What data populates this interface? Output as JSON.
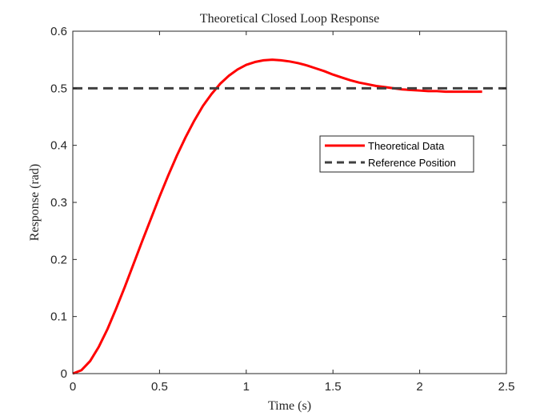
{
  "chart_data": {
    "type": "line",
    "title": "Theoretical Closed Loop Response",
    "xlabel": "Time (s)",
    "ylabel": "Response (rad)",
    "xlim": [
      0,
      2.5
    ],
    "ylim": [
      0,
      0.6
    ],
    "xticks": [
      0,
      0.5,
      1,
      1.5,
      2,
      2.5
    ],
    "xtick_labels": [
      "0",
      "0.5",
      "1",
      "1.5",
      "2",
      "2.5"
    ],
    "yticks": [
      0,
      0.1,
      0.2,
      0.3,
      0.4,
      0.5,
      0.6
    ],
    "ytick_labels": [
      "0",
      "0.1",
      "0.2",
      "0.3",
      "0.4",
      "0.5",
      "0.6"
    ],
    "grid": false,
    "legend_position": "center-right",
    "series": [
      {
        "name": "Theoretical Data",
        "color": "#ff0000",
        "style": "solid",
        "x": [
          0,
          0.05,
          0.1,
          0.15,
          0.2,
          0.25,
          0.3,
          0.35,
          0.4,
          0.45,
          0.5,
          0.55,
          0.6,
          0.65,
          0.7,
          0.75,
          0.8,
          0.85,
          0.9,
          0.95,
          1.0,
          1.05,
          1.1,
          1.15,
          1.2,
          1.25,
          1.3,
          1.35,
          1.4,
          1.45,
          1.5,
          1.55,
          1.6,
          1.65,
          1.7,
          1.75,
          1.8,
          1.85,
          1.9,
          1.95,
          2.0,
          2.05,
          2.1,
          2.15,
          2.2,
          2.25,
          2.3,
          2.36
        ],
        "y": [
          0,
          0.006,
          0.022,
          0.047,
          0.078,
          0.114,
          0.152,
          0.192,
          0.232,
          0.271,
          0.31,
          0.347,
          0.382,
          0.414,
          0.443,
          0.469,
          0.49,
          0.508,
          0.522,
          0.533,
          0.541,
          0.546,
          0.549,
          0.55,
          0.549,
          0.547,
          0.544,
          0.54,
          0.535,
          0.53,
          0.524,
          0.519,
          0.514,
          0.51,
          0.507,
          0.504,
          0.502,
          0.5,
          0.498,
          0.497,
          0.496,
          0.495,
          0.495,
          0.494,
          0.494,
          0.494,
          0.494,
          0.494
        ]
      },
      {
        "name": "Reference Position",
        "color": "#404040",
        "style": "dashed",
        "x": [
          0,
          2.5
        ],
        "y": [
          0.5,
          0.5
        ]
      }
    ]
  }
}
